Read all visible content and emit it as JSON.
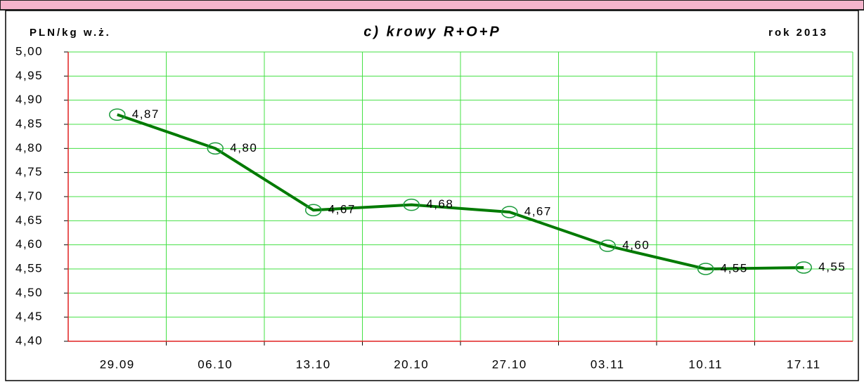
{
  "chart_data": {
    "type": "line",
    "title": "c) krowy R+O+P",
    "y_label": "PLN/kg w.ż.",
    "subtitle": "rok 2013",
    "categories": [
      "29.09",
      "06.10",
      "13.10",
      "20.10",
      "27.10",
      "03.11",
      "10.11",
      "17.11"
    ],
    "series": [
      {
        "name": "krowy R+O+P",
        "color": "#007a00",
        "values": [
          4.87,
          4.8,
          4.672,
          4.683,
          4.668,
          4.598,
          4.55,
          4.553
        ],
        "value_labels": [
          "4,87",
          "4,80",
          "4,67",
          "4,68",
          "4,67",
          "4,60",
          "4,55",
          "4,55"
        ]
      }
    ],
    "ylim": [
      4.4,
      5.0
    ],
    "yticks": [
      {
        "value": 4.4,
        "label": "4,40"
      },
      {
        "value": 4.45,
        "label": "4,45"
      },
      {
        "value": 4.5,
        "label": "4,50"
      },
      {
        "value": 4.55,
        "label": "4,55"
      },
      {
        "value": 4.6,
        "label": "4,60"
      },
      {
        "value": 4.65,
        "label": "4,65"
      },
      {
        "value": 4.7,
        "label": "4,70"
      },
      {
        "value": 4.75,
        "label": "4,75"
      },
      {
        "value": 4.8,
        "label": "4,80"
      },
      {
        "value": 4.85,
        "label": "4,85"
      },
      {
        "value": 4.9,
        "label": "4,90"
      },
      {
        "value": 4.95,
        "label": "4,95"
      },
      {
        "value": 5.0,
        "label": "5,00"
      }
    ],
    "grid": true
  }
}
